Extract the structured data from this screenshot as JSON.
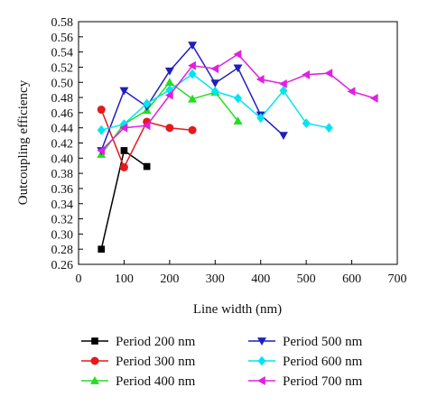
{
  "chart_data": {
    "type": "line",
    "title": "",
    "xlabel": "Line width (nm)",
    "ylabel": "Outcoupling efficiency",
    "xlim": [
      0,
      700
    ],
    "ylim": [
      0.26,
      0.58
    ],
    "x_ticks": [
      "0",
      "100",
      "200",
      "300",
      "400",
      "500",
      "600",
      "700"
    ],
    "y_ticks": [
      "0.26",
      "0.28",
      "0.30",
      "0.32",
      "0.34",
      "0.36",
      "0.38",
      "0.40",
      "0.42",
      "0.44",
      "0.46",
      "0.48",
      "0.50",
      "0.52",
      "0.54",
      "0.56",
      "0.58"
    ],
    "grid": false,
    "legend_position": "bottom",
    "series": [
      {
        "name": "Period 200 nm",
        "color": "#000000",
        "marker": "square",
        "x": [
          50,
          100,
          150
        ],
        "y": [
          0.28,
          0.41,
          0.389
        ]
      },
      {
        "name": "Period 300 nm",
        "color": "#e41a1c",
        "marker": "circle",
        "x": [
          50,
          100,
          150,
          200,
          250
        ],
        "y": [
          0.464,
          0.388,
          0.448,
          0.44,
          0.437
        ]
      },
      {
        "name": "Period 400 nm",
        "color": "#22dd22",
        "marker": "triangle-up",
        "x": [
          50,
          100,
          150,
          200,
          250,
          300,
          350
        ],
        "y": [
          0.405,
          0.445,
          0.463,
          0.5,
          0.478,
          0.487,
          0.449
        ]
      },
      {
        "name": "Period 500 nm",
        "color": "#1f1fbf",
        "marker": "triangle-down",
        "x": [
          50,
          100,
          150,
          200,
          250,
          300,
          350,
          400,
          450
        ],
        "y": [
          0.41,
          0.489,
          0.468,
          0.515,
          0.549,
          0.499,
          0.519,
          0.457,
          0.43
        ]
      },
      {
        "name": "Period 600 nm",
        "color": "#00e5ee",
        "marker": "diamond",
        "x": [
          50,
          100,
          150,
          200,
          250,
          300,
          350,
          400,
          450,
          500,
          550
        ],
        "y": [
          0.437,
          0.445,
          0.472,
          0.49,
          0.511,
          0.488,
          0.479,
          0.453,
          0.489,
          0.446,
          0.44
        ]
      },
      {
        "name": "Period 700 nm",
        "color": "#e020e0",
        "marker": "triangle-left",
        "x": [
          50,
          100,
          150,
          200,
          250,
          300,
          350,
          400,
          450,
          500,
          550,
          600,
          650
        ],
        "y": [
          0.41,
          0.44,
          0.443,
          0.483,
          0.522,
          0.518,
          0.537,
          0.504,
          0.498,
          0.51,
          0.512,
          0.488,
          0.479
        ]
      }
    ]
  }
}
